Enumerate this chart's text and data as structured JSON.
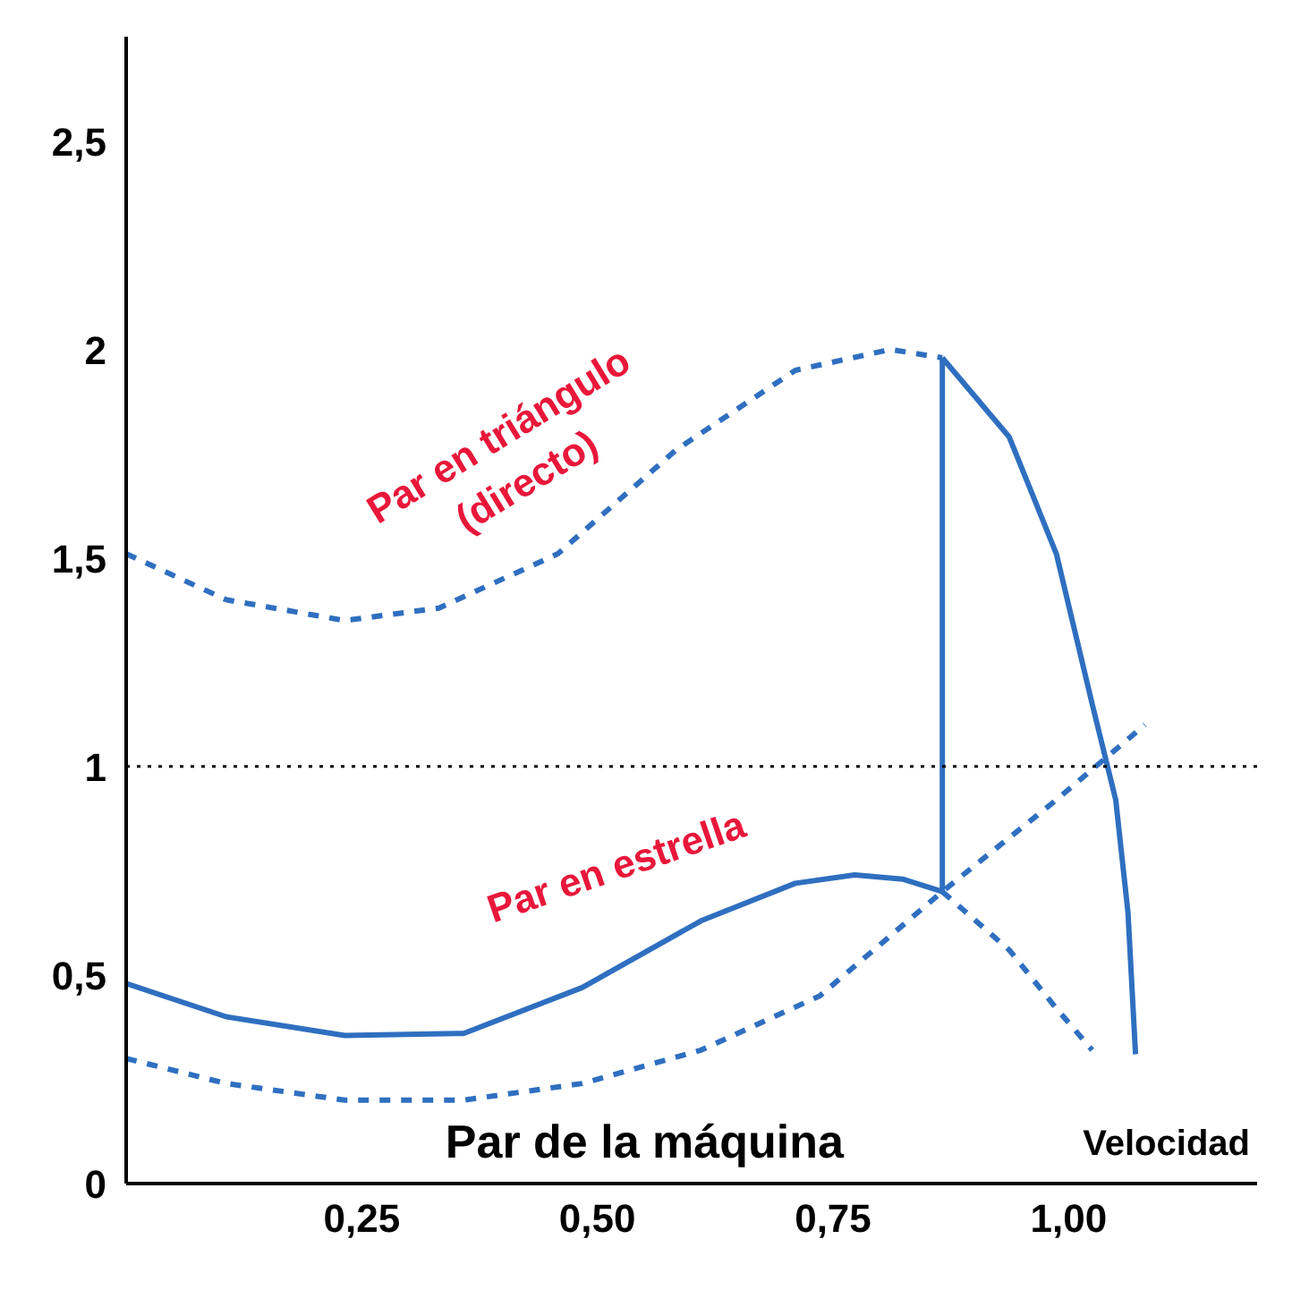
{
  "chart_data": {
    "type": "line",
    "xlabel": "Velocidad",
    "xlim": [
      0,
      1.2
    ],
    "ylim": [
      0,
      2.75
    ],
    "xticks": [
      {
        "value": 0.25,
        "label": "0,25"
      },
      {
        "value": 0.5,
        "label": "0,50"
      },
      {
        "value": 0.75,
        "label": "0,75"
      },
      {
        "value": 1.0,
        "label": "1,00"
      }
    ],
    "yticks": [
      0,
      {
        "value": 0.5,
        "label": "0,5"
      },
      1,
      {
        "value": 1.5,
        "label": "1,5"
      },
      2,
      {
        "value": 2.5,
        "label": "2,5"
      }
    ],
    "grid": false,
    "marker": "none",
    "series": [
      {
        "color": "#2f6fc0",
        "line_style": "dashed",
        "x": [
          0,
          0.106,
          0.232,
          0.332,
          0.458,
          0.584,
          0.71,
          0.811,
          0.866
        ],
        "values": [
          1.51,
          1.4,
          1.35,
          1.38,
          1.51,
          1.76,
          1.95,
          2.0,
          1.98
        ]
      },
      {
        "color": "#2f6fc0",
        "line_style": "solid",
        "x": [
          0.866,
          0.937,
          0.987,
          1.025,
          1.05,
          1.063,
          1.071
        ],
        "values": [
          1.98,
          1.79,
          1.51,
          1.15,
          0.92,
          0.65,
          0.31
        ]
      },
      {
        "color": "#2f6fc0",
        "line_style": "solid",
        "x": [
          0.866,
          0.866
        ],
        "values": [
          1.98,
          0.7
        ]
      },
      {
        "color": "#2f6fc0",
        "line_style": "solid",
        "x": [
          0,
          0.106,
          0.232,
          0.358,
          0.484,
          0.61,
          0.71,
          0.773,
          0.824,
          0.866
        ],
        "values": [
          0.48,
          0.4,
          0.355,
          0.36,
          0.47,
          0.63,
          0.72,
          0.74,
          0.73,
          0.7
        ]
      },
      {
        "color": "#2f6fc0",
        "line_style": "dashed",
        "x": [
          0.866,
          0.937,
          0.987,
          1.025
        ],
        "values": [
          0.7,
          0.56,
          0.42,
          0.32
        ]
      },
      {
        "color": "#2f6fc0",
        "line_style": "dashed",
        "x": [
          0,
          0.106,
          0.232,
          0.358,
          0.484,
          0.61,
          0.736,
          0.866,
          0.987,
          1.081
        ],
        "values": [
          0.3,
          0.24,
          0.2,
          0.2,
          0.24,
          0.32,
          0.45,
          0.7,
          0.92,
          1.1
        ]
      }
    ],
    "ref_lines": [
      {
        "axis": "y",
        "value": 1,
        "label": null,
        "color": "#000000",
        "line_style": "dotted"
      }
    ],
    "annotations": [
      "Par en triángulo\n(directo)",
      "Par en estrella",
      "Par de la máquina"
    ]
  }
}
